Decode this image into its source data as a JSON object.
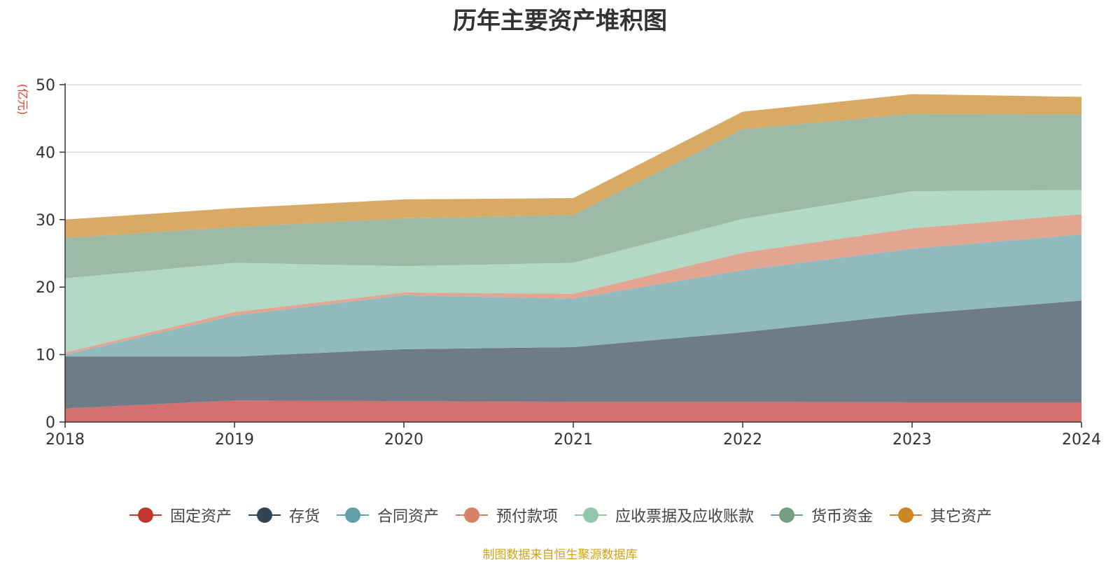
{
  "footer": {
    "source": "制图数据来自恒生聚源数据库"
  },
  "colors": {
    "source_note": "#d4a017",
    "y_unit": "#e53935",
    "axis": "#333333",
    "grid": "#cccccc"
  },
  "chart_data": {
    "type": "area",
    "stacked": true,
    "title": "历年主要资产堆积图",
    "y_unit": "(亿元)",
    "xlabel": "",
    "ylabel": "",
    "x": [
      "2018",
      "2019",
      "2020",
      "2021",
      "2022",
      "2023",
      "2024"
    ],
    "ylim": [
      0,
      50
    ],
    "yticks": [
      "0",
      "10",
      "20",
      "30",
      "40",
      "50"
    ],
    "grid": true,
    "legend_position": "bottom",
    "series": [
      {
        "name": "固定资产",
        "color": "#c23531",
        "fill": "#d57070",
        "values": [
          2.0,
          3.2,
          3.1,
          3.0,
          3.0,
          2.9,
          2.9
        ]
      },
      {
        "name": "存货",
        "color": "#2f4554",
        "fill": "#6f7c88",
        "values": [
          7.7,
          6.5,
          7.7,
          8.1,
          10.3,
          13.1,
          15.1
        ]
      },
      {
        "name": "合同资产",
        "color": "#61a0a8",
        "fill": "#91babf",
        "values": [
          0.3,
          6.1,
          8.0,
          7.2,
          9.2,
          9.7,
          9.8
        ]
      },
      {
        "name": "预付款项",
        "color": "#d48265",
        "fill": "#e2a591",
        "values": [
          0.3,
          0.5,
          0.4,
          0.7,
          2.6,
          3.0,
          3.0
        ]
      },
      {
        "name": "应收票据及应收账款",
        "color": "#91c7ae",
        "fill": "#b2d9c6",
        "values": [
          11.0,
          7.3,
          3.9,
          4.6,
          5.0,
          5.5,
          3.6
        ]
      },
      {
        "name": "货币资金",
        "color": "#749f83",
        "fill": "#9ebaa7",
        "values": [
          6.0,
          5.3,
          7.1,
          7.1,
          13.3,
          11.5,
          11.2
        ]
      },
      {
        "name": "其它资产",
        "color": "#ca8622",
        "fill": "#d9aa64",
        "values": [
          2.7,
          2.8,
          2.8,
          2.5,
          2.6,
          2.9,
          2.6
        ]
      }
    ]
  }
}
